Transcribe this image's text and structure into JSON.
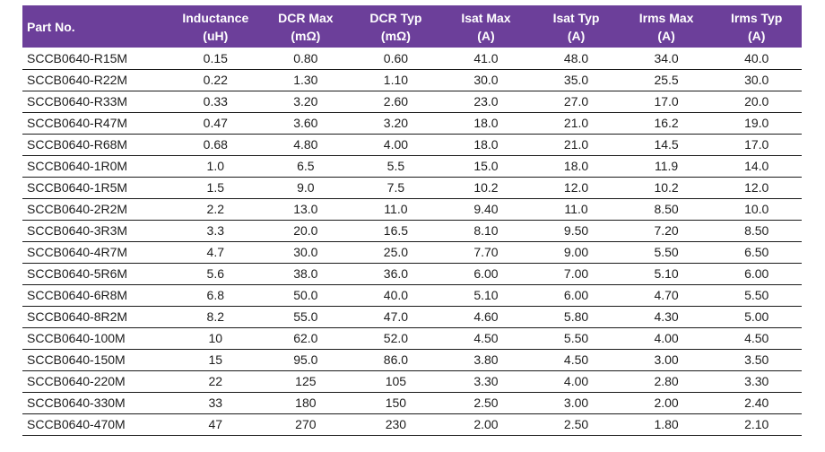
{
  "colors": {
    "header_bg": "#6C3F9A",
    "header_text": "#FFFFFF",
    "row_text": "#1D1D1D",
    "row_border": "#1A1A1A",
    "page_bg": "#FFFFFF"
  },
  "table": {
    "columns": [
      {
        "label": "Part No.",
        "unit": ""
      },
      {
        "label": "Inductance",
        "unit": "(uH)"
      },
      {
        "label": "DCR Max",
        "unit": "(mΩ)"
      },
      {
        "label": "DCR Typ",
        "unit": "(mΩ)"
      },
      {
        "label": "Isat Max",
        "unit": "(A)"
      },
      {
        "label": "Isat Typ",
        "unit": "(A)"
      },
      {
        "label": "Irms Max",
        "unit": "(A)"
      },
      {
        "label": "Irms Typ",
        "unit": "(A)"
      }
    ],
    "rows": [
      [
        "SCCB0640-R15M",
        "0.15",
        "0.80",
        "0.60",
        "41.0",
        "48.0",
        "34.0",
        "40.0"
      ],
      [
        "SCCB0640-R22M",
        "0.22",
        "1.30",
        "1.10",
        "30.0",
        "35.0",
        "25.5",
        "30.0"
      ],
      [
        "SCCB0640-R33M",
        "0.33",
        "3.20",
        "2.60",
        "23.0",
        "27.0",
        "17.0",
        "20.0"
      ],
      [
        "SCCB0640-R47M",
        "0.47",
        "3.60",
        "3.20",
        "18.0",
        "21.0",
        "16.2",
        "19.0"
      ],
      [
        "SCCB0640-R68M",
        "0.68",
        "4.80",
        "4.00",
        "18.0",
        "21.0",
        "14.5",
        "17.0"
      ],
      [
        "SCCB0640-1R0M",
        "1.0",
        "6.5",
        "5.5",
        "15.0",
        "18.0",
        "11.9",
        "14.0"
      ],
      [
        "SCCB0640-1R5M",
        "1.5",
        "9.0",
        "7.5",
        "10.2",
        "12.0",
        "10.2",
        "12.0"
      ],
      [
        "SCCB0640-2R2M",
        "2.2",
        "13.0",
        "11.0",
        "9.40",
        "11.0",
        "8.50",
        "10.0"
      ],
      [
        "SCCB0640-3R3M",
        "3.3",
        "20.0",
        "16.5",
        "8.10",
        "9.50",
        "7.20",
        "8.50"
      ],
      [
        "SCCB0640-4R7M",
        "4.7",
        "30.0",
        "25.0",
        "7.70",
        "9.00",
        "5.50",
        "6.50"
      ],
      [
        "SCCB0640-5R6M",
        "5.6",
        "38.0",
        "36.0",
        "6.00",
        "7.00",
        "5.10",
        "6.00"
      ],
      [
        "SCCB0640-6R8M",
        "6.8",
        "50.0",
        "40.0",
        "5.10",
        "6.00",
        "4.70",
        "5.50"
      ],
      [
        "SCCB0640-8R2M",
        "8.2",
        "55.0",
        "47.0",
        "4.60",
        "5.80",
        "4.30",
        "5.00"
      ],
      [
        "SCCB0640-100M",
        "10",
        "62.0",
        "52.0",
        "4.50",
        "5.50",
        "4.00",
        "4.50"
      ],
      [
        "SCCB0640-150M",
        "15",
        "95.0",
        "86.0",
        "3.80",
        "4.50",
        "3.00",
        "3.50"
      ],
      [
        "SCCB0640-220M",
        "22",
        "125",
        "105",
        "3.30",
        "4.00",
        "2.80",
        "3.30"
      ],
      [
        "SCCB0640-330M",
        "33",
        "180",
        "150",
        "2.50",
        "3.00",
        "2.00",
        "2.40"
      ],
      [
        "SCCB0640-470M",
        "47",
        "270",
        "230",
        "2.00",
        "2.50",
        "1.80",
        "2.10"
      ]
    ]
  }
}
